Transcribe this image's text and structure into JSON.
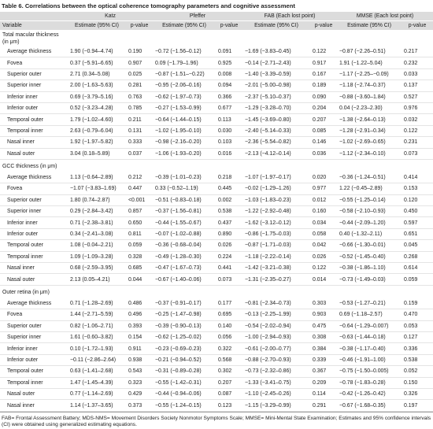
{
  "title": "Table 6. Correlations between the optical coherence tomography parameters and cognitive assessment",
  "table": {
    "groups": [
      "Katz",
      "Pfeffer",
      "FAB (Each lost point)",
      "MMSE (Each lost point)"
    ],
    "subheaders": [
      "Variable",
      "Estimate (95% CI)",
      "p-value",
      "Estimate (95% CI)",
      "p-value",
      "Estimate (95% CI)",
      "p-value",
      "Estimate (95% CI)",
      "p-value"
    ],
    "sections": [
      {
        "title": "Total macular thickness (in μm)",
        "rows": [
          [
            "Average thickness",
            "1.90 (−0.94–4.74)",
            "0.190",
            "−0.72 (−1.56–0.12)",
            "0.091",
            "−1.69 (−3.83–0.45)",
            "0.122",
            "−0.87 (−2.26–0.51)",
            "0.217"
          ],
          [
            "Fovea",
            "0.37 (−5.91–6.65)",
            "0.907",
            "0.09 (−1.79–1.96)",
            "0.925",
            "−0.14 (−2.71–2.43)",
            "0.917",
            "1.91 (−1.22–5.04)",
            "0.232"
          ],
          [
            "Superior outer",
            "2.71 (0.34–5.08)",
            "0.025",
            "−0.87 (−1.51–−0.22)",
            "0.008",
            "−1.40 (−3.39–0.59)",
            "0.167",
            "−1.17 (−2.25–−0.09)",
            "0.033"
          ],
          [
            "Superior inner",
            "2.00 (−1.63–5.63)",
            "0.281",
            "−0.95 (−2.06–0.16)",
            "0.094",
            "−2.01 (−5.00–0.98)",
            "0.189",
            "−1.18 (−2.74–0.37)",
            "0.137"
          ],
          [
            "Inferior inner",
            "0.69 (−3.79–5.16)",
            "0.763",
            "−0.62 (−1.97–0.73)",
            "0.366",
            "−2.37 (−5.10–0.37)",
            "0.090",
            "−0.88 (−3.60–1.84)",
            "0.527"
          ],
          [
            "Inferior outer",
            "0.52 (−3.23–4.28)",
            "0.785",
            "−0.27 (−1.53–0.99)",
            "0.677",
            "−1.29 (−3.28–0.70)",
            "0.204",
            "0.04 (−2.23–2.30)",
            "0.976"
          ],
          [
            "Temporal outer",
            "1.79 (−1.02–4.60)",
            "0.211",
            "−0.64 (−1.44–0.15)",
            "0.113",
            "−1.45 (−3.69–0.80)",
            "0.207",
            "−1.38 (−2.64–0.13)",
            "0.032"
          ],
          [
            "Temporal inner",
            "2.63 (−0.79–6.04)",
            "0.131",
            "−1.02 (−1.95–0.10)",
            "0.030",
            "−2.40 (−5.14–0.33)",
            "0.085",
            "−1.28 (−2.91–0.34)",
            "0.122"
          ],
          [
            "Nasal inner",
            "1.92 (−1.97–5.82)",
            "0.333",
            "−0.98 (−2.16–0.20)",
            "0.103",
            "−2.36 (−5.54–0.82)",
            "0.146",
            "−1.02 (−2.69–0.65)",
            "0.231"
          ],
          [
            "Nasal outer",
            "3.04 (0.18–5.89)",
            "0.037",
            "−1.06 (−1.93–0.20)",
            "0.016",
            "−2.13 (−4.12–0.14)",
            "0.036",
            "−1.12 (−2.34–0.10)",
            "0.073"
          ]
        ]
      },
      {
        "title": "GCC thickness (in μm)",
        "rows": [
          [
            "Average thickness",
            "1.13 (−0.64–2.89)",
            "0.212",
            "−0.39 (−1.01–0.23)",
            "0.218",
            "−1.07 (−1.97–0.17)",
            "0.020",
            "−0.36 (−1.24–0.51)",
            "0.414"
          ],
          [
            "Fovea",
            "−1.07 (−3.83–1.69)",
            "0.447",
            "0.33 (−0.52–1.19)",
            "0.445",
            "−0.02 (−1.29–1.26)",
            "0.977",
            "1.22 (−0.45–2.89)",
            "0.153"
          ],
          [
            "Superior outer",
            "1.80 (0.74–2.87)",
            "<0.001",
            "−0.51 (−0.83–0.18)",
            "0.002",
            "−1.03 (−1.83–0.23)",
            "0.012",
            "−0.55 (−1.25–0.14)",
            "0.120"
          ],
          [
            "Superior inner",
            "0.29 (−2.84–3.42)",
            "0.857",
            "−0.37 (−1.56–0.81)",
            "0.538",
            "−1.22 (−2.92–0.48)",
            "0.160",
            "−0.58 (−2.10–0.93)",
            "0.450"
          ],
          [
            "Inferior inner",
            "0.71 (−2.38–3.81)",
            "0.650",
            "−0.44 (−1.55–0.67)",
            "0.437",
            "−1.62 (−3.12–0.12)",
            "0.034",
            "−0.44 (−2.09–1.20)",
            "0.597"
          ],
          [
            "Inferior outer",
            "0.34 (−2.41–3.08)",
            "0.811",
            "−0.07 (−1.02–0.88)",
            "0.890",
            "−0.86 (−1.75–0.03)",
            "0.058",
            "0.40 (−1.32–2.11)",
            "0.651"
          ],
          [
            "Temporal outer",
            "1.08 (−0.04–2.21)",
            "0.059",
            "−0.36 (−0.68–0.04)",
            "0.026",
            "−0.87 (−1.71–0.03)",
            "0.042",
            "−0.66 (−1.30–0.01)",
            "0.045"
          ],
          [
            "Temporal inner",
            "1.09 (−1.09–3.28)",
            "0.328",
            "−0.49 (−1.28–0.30)",
            "0.224",
            "−1.18 (−2.22–0.14)",
            "0.026",
            "−0.52 (−1.45–0.40)",
            "0.268"
          ],
          [
            "Nasal inner",
            "0.68 (−2.59–3.95)",
            "0.685",
            "−0.47 (−1.67–0.73)",
            "0.441",
            "−1.42 (−3.21–0.38)",
            "0.122",
            "−0.38 (−1.86–1.10)",
            "0.614"
          ],
          [
            "Nasal outer",
            "2.13 (0.05–4.21)",
            "0.044",
            "−0.67 (−1.40–0.06)",
            "0.073",
            "−1.31 (−2.35–0.27)",
            "0.014",
            "−0.73 (−1.49–0.03)",
            "0.059"
          ]
        ]
      },
      {
        "title": "Outer retina (in μm)",
        "rows": [
          [
            "Average thickness",
            "0.71 (−1.28–2.69)",
            "0.486",
            "−0.37 (−0.91–0.17)",
            "0.177",
            "−0.81 (−2.34–0.73)",
            "0.303",
            "−0.53 (−1.27–0.21)",
            "0.159"
          ],
          [
            "Fovea",
            "1.44 (−2.71–5.59)",
            "0.496",
            "−0.25 (−1.47–0.98)",
            "0.695",
            "−0.13 (−2.25–1.99)",
            "0.903",
            "0.69 (−1.18–2.57)",
            "0.470"
          ],
          [
            "Superior outer",
            "0.82 (−1.06–2.71)",
            "0.393",
            "−0.39 (−0.90–0.13)",
            "0.140",
            "−0.54 (−2.02–0.94)",
            "0.475",
            "−0.64 (−1.29–0.007)",
            "0.053"
          ],
          [
            "Superior inner",
            "1.61 (−0.60–3.82)",
            "0.154",
            "−0.62 (−1.25–0.02)",
            "0.056",
            "−1.00 (−2.94–0.93)",
            "0.308",
            "−0.63 (−1.44–0.18)",
            "0.127"
          ],
          [
            "Inferior inner",
            "0.10 (−1.72–1.93)",
            "0.911",
            "−0.23 (−0.69–0.23)",
            "0.322",
            "−0.61 (−2.00–0.77)",
            "0.384",
            "−0.38 (−1.17–0.40)",
            "0.336"
          ],
          [
            "Inferior outer",
            "−0.11 (−2.86–2.64)",
            "0.938",
            "−0.21 (−0.94–0.52)",
            "0.568",
            "−0.88 (−2.70–0.93)",
            "0.339",
            "−0.46 (−1.91–1.00)",
            "0.538"
          ],
          [
            "Temporal outer",
            "0.63 (−1.41–2.68)",
            "0.543",
            "−0.31 (−0.89–0.28)",
            "0.302",
            "−0.73 (−2.32–0.86)",
            "0.367",
            "−0.75 (−1.50–0.005)",
            "0.052"
          ],
          [
            "Temporal inner",
            "1.47 (−1.45–4.39)",
            "0.323",
            "−0.55 (−1.42–0.31)",
            "0.207",
            "−1.33 (−3.41–0.75)",
            "0.209",
            "−0.78 (−1.83–0.28)",
            "0.150"
          ],
          [
            "Nasal outer",
            "0.77 (−1.14–2.69)",
            "0.429",
            "−0.44 (−0.94–0.06)",
            "0.087",
            "−1.10 (−2.45–0.26)",
            "0.114",
            "−0.42 (−1.26–0.42)",
            "0.326"
          ],
          [
            "Nasal inner",
            "1.14 (−1.37–3.65)",
            "0.373",
            "−0.55 (−1.24–0.15)",
            "0.123",
            "−1.15 (−3.29–0.99)",
            "0.291",
            "−0.67 (−1.68–0.35)",
            "0.197"
          ]
        ]
      }
    ]
  },
  "footnote": "FAB= Frontal Assessment Battery; MDS-NMS= Movement Disorders Society Nonmotor Symptoms Scale; MMSE= Mini-Mental State Examination; Estimates and 95% confidence intervals (CI) were obtained using generalized estimating equations."
}
